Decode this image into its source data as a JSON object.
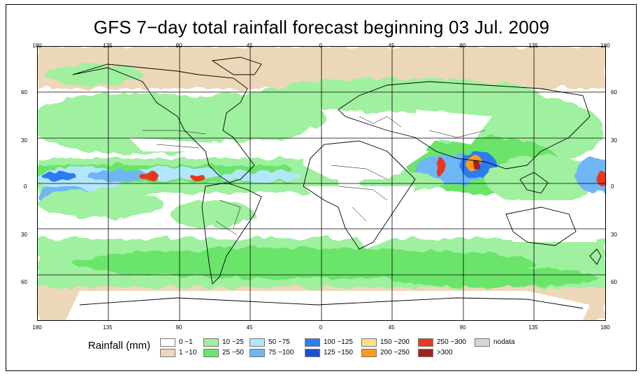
{
  "title": "GFS 7−day total rainfall forecast beginning 03 Jul. 2009",
  "longitude_labels": [
    "180",
    "135",
    "90",
    "45",
    "0",
    "45",
    "90",
    "135",
    "180"
  ],
  "latitude_labels": [
    "60",
    "30",
    "0",
    "30",
    "60"
  ],
  "legend": {
    "title": "Rainfall (mm)",
    "items": [
      {
        "label": "0 −1",
        "color": "#ffffff"
      },
      {
        "label": "1 −10",
        "color": "#ecd8b8"
      },
      {
        "label": "10 −25",
        "color": "#9ff09f"
      },
      {
        "label": "25 −50",
        "color": "#6be56b"
      },
      {
        "label": "50 −75",
        "color": "#b2e6fa"
      },
      {
        "label": "75 −100",
        "color": "#6eb6f5"
      },
      {
        "label": "100 −125",
        "color": "#2c7cf0"
      },
      {
        "label": "125 −150",
        "color": "#1d4fd8"
      },
      {
        "label": "150 −200",
        "color": "#ffe08a"
      },
      {
        "label": "200 −250",
        "color": "#ff9a1a"
      },
      {
        "label": "250 −300",
        "color": "#e8391d"
      },
      {
        "label": ">300",
        "color": "#a3231c"
      },
      {
        "label": "nodata",
        "color": "#d6d6d6"
      }
    ]
  }
}
